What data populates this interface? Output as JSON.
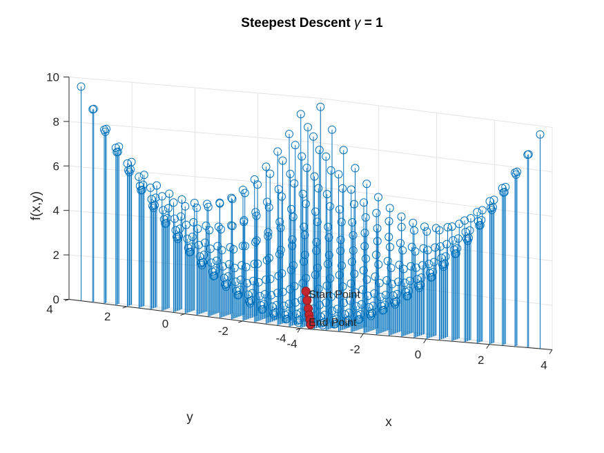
{
  "chart_data": {
    "type": "stem3",
    "title": "Steepest Descent ",
    "title_symbol": "γ",
    "title_suffix": " = 1",
    "xlabel": "x",
    "ylabel": "y",
    "zlabel": "f(x,y)",
    "xlim": [
      -4,
      4
    ],
    "ylim": [
      -4,
      4
    ],
    "zlim": [
      0,
      10
    ],
    "x_ticks": [
      -4,
      -2,
      0,
      2,
      4
    ],
    "y_ticks": [
      -4,
      -2,
      0,
      2,
      4
    ],
    "z_ticks": [
      0,
      2,
      4,
      6,
      8,
      10
    ],
    "x_tick_labels": [
      "-4",
      "-2",
      "0",
      "2",
      "4"
    ],
    "y_tick_labels": [
      "-4",
      "-2",
      "0",
      "2",
      "4"
    ],
    "z_tick_labels": [
      "0",
      "2",
      "4",
      "6",
      "8",
      "10"
    ],
    "grid": true,
    "surface": {
      "function": "f(x,y) = (x^2 + y^2) / 3",
      "x_range": [
        -3.8,
        3.8
      ],
      "y_range": [
        -3.8,
        3.8
      ],
      "samples_per_axis": 20,
      "marker": "circle",
      "color": "#0072BD"
    },
    "descent_path": {
      "color": "#C1272D",
      "points": [
        {
          "x": 0.4,
          "y": 0.6,
          "z": 1.45
        },
        {
          "x": 0.3,
          "y": 0.45,
          "z": 1.05
        },
        {
          "x": 0.2,
          "y": 0.3,
          "z": 0.7
        },
        {
          "x": 0.12,
          "y": 0.18,
          "z": 0.42
        },
        {
          "x": 0.06,
          "y": 0.09,
          "z": 0.22
        },
        {
          "x": 0.0,
          "y": 0.0,
          "z": 0.0
        }
      ]
    },
    "annotations": [
      {
        "text": "Start Point",
        "x": 0.4,
        "y": 0.6,
        "z": 1.45
      },
      {
        "text": "End Point",
        "x": 0.0,
        "y": 0.0,
        "z": 0.0
      }
    ]
  }
}
